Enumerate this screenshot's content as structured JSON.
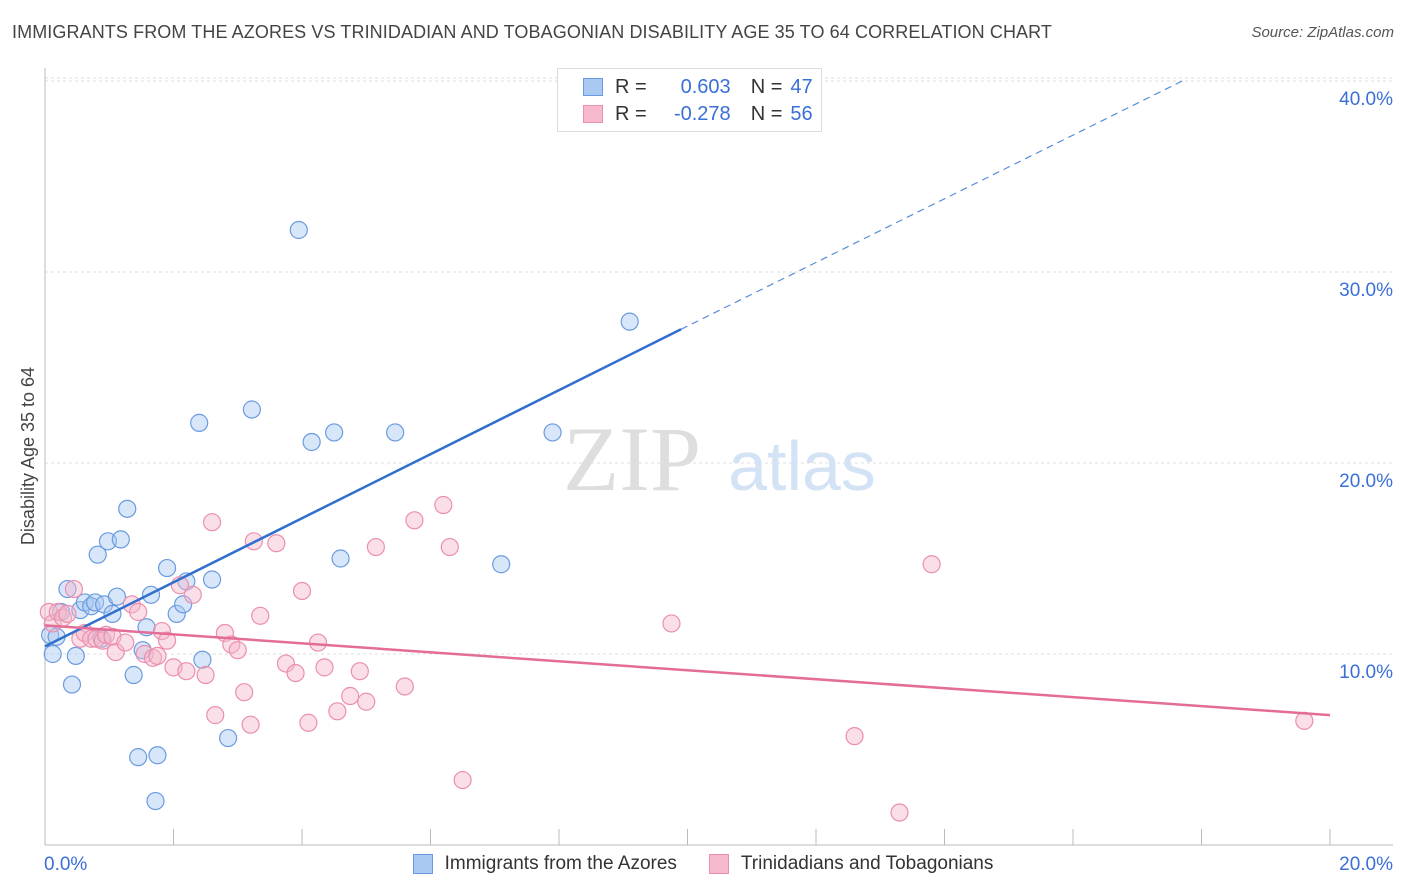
{
  "header": {
    "title": "IMMIGRANTS FROM THE AZORES VS TRINIDADIAN AND TOBAGONIAN DISABILITY AGE 35 TO 64 CORRELATION CHART",
    "source": "Source: ZipAtlas.com"
  },
  "watermark": {
    "zip": "ZIP",
    "atlas": "atlas"
  },
  "stats": [
    {
      "r_label": "R =",
      "r_value": "0.603",
      "n_label": "N =",
      "n_value": "47"
    },
    {
      "r_label": "R =",
      "r_value": "-0.278",
      "n_label": "N =",
      "n_value": "56"
    }
  ],
  "colors": {
    "blue_fill": "#a9c8f2",
    "blue_stroke": "#6a9be0",
    "blue_line": "#2f6fcd",
    "pink_fill": "#f5b8cd",
    "pink_stroke": "#eb8fae",
    "pink_line": "#e46c98",
    "axis_text": "#3a6fd8",
    "grid": "#dcdcdc"
  },
  "chart_data": {
    "type": "scatter",
    "title": "IMMIGRANTS FROM THE AZORES VS TRINIDADIAN AND TOBAGONIAN DISABILITY AGE 35 TO 64 CORRELATION CHART",
    "xlabel": "",
    "ylabel": "Disability Age 35 to 64",
    "xlim": [
      0,
      20
    ],
    "ylim": [
      0,
      41
    ],
    "x_tick_labels": [
      {
        "value": 0,
        "label": "0.0%"
      },
      {
        "value": 20,
        "label": "20.0%"
      }
    ],
    "y_tick_labels": [
      {
        "value": 10,
        "label": "10.0%"
      },
      {
        "value": 20,
        "label": "20.0%"
      },
      {
        "value": 30,
        "label": "30.0%"
      },
      {
        "value": 40,
        "label": "40.0%"
      }
    ],
    "grid": true,
    "legend_position": "bottom-center",
    "series": [
      {
        "name": "Immigrants from the Azores",
        "color": "#a9c8f2",
        "points": [
          [
            0.08,
            11.0
          ],
          [
            0.12,
            10.0
          ],
          [
            0.18,
            10.9
          ],
          [
            0.25,
            12.2
          ],
          [
            0.35,
            13.4
          ],
          [
            0.42,
            8.4
          ],
          [
            0.48,
            9.9
          ],
          [
            0.55,
            12.3
          ],
          [
            0.62,
            12.7
          ],
          [
            0.72,
            12.5
          ],
          [
            0.78,
            12.7
          ],
          [
            0.82,
            15.2
          ],
          [
            0.88,
            10.8
          ],
          [
            0.92,
            12.6
          ],
          [
            0.98,
            15.9
          ],
          [
            1.05,
            12.1
          ],
          [
            1.12,
            13.0
          ],
          [
            1.18,
            16.0
          ],
          [
            1.28,
            17.6
          ],
          [
            1.38,
            8.9
          ],
          [
            1.45,
            4.6
          ],
          [
            1.52,
            10.2
          ],
          [
            1.58,
            11.4
          ],
          [
            1.65,
            13.1
          ],
          [
            1.72,
            2.3
          ],
          [
            1.75,
            4.7
          ],
          [
            1.9,
            14.5
          ],
          [
            2.05,
            12.1
          ],
          [
            2.15,
            12.6
          ],
          [
            2.2,
            13.8
          ],
          [
            2.4,
            22.1
          ],
          [
            2.45,
            9.7
          ],
          [
            2.6,
            13.9
          ],
          [
            2.85,
            5.6
          ],
          [
            3.22,
            22.8
          ],
          [
            3.95,
            32.2
          ],
          [
            4.15,
            21.1
          ],
          [
            4.5,
            21.6
          ],
          [
            4.6,
            15.0
          ],
          [
            5.45,
            21.6
          ],
          [
            7.1,
            14.7
          ],
          [
            7.9,
            21.6
          ],
          [
            9.1,
            27.4
          ]
        ],
        "trend_solid": [
          [
            0.0,
            10.4
          ],
          [
            9.9,
            27.0
          ]
        ],
        "trend_dashed": [
          [
            9.9,
            27.0
          ],
          [
            17.7,
            40.0
          ]
        ]
      },
      {
        "name": "Trinidadians and Tobagonians",
        "color": "#f5b8cd",
        "points": [
          [
            0.06,
            12.2
          ],
          [
            0.12,
            11.6
          ],
          [
            0.2,
            12.2
          ],
          [
            0.28,
            11.9
          ],
          [
            0.35,
            12.1
          ],
          [
            0.45,
            13.4
          ],
          [
            0.55,
            10.8
          ],
          [
            0.62,
            11.1
          ],
          [
            0.72,
            10.8
          ],
          [
            0.8,
            10.8
          ],
          [
            0.9,
            10.7
          ],
          [
            0.95,
            11.0
          ],
          [
            1.05,
            10.9
          ],
          [
            1.1,
            10.1
          ],
          [
            1.25,
            10.6
          ],
          [
            1.35,
            12.6
          ],
          [
            1.45,
            12.2
          ],
          [
            1.55,
            10.0
          ],
          [
            1.68,
            9.8
          ],
          [
            1.75,
            9.9
          ],
          [
            1.82,
            11.2
          ],
          [
            1.9,
            10.7
          ],
          [
            2.0,
            9.3
          ],
          [
            2.1,
            13.6
          ],
          [
            2.2,
            9.1
          ],
          [
            2.3,
            13.1
          ],
          [
            2.5,
            8.9
          ],
          [
            2.6,
            16.9
          ],
          [
            2.65,
            6.8
          ],
          [
            2.8,
            11.1
          ],
          [
            2.9,
            10.5
          ],
          [
            3.0,
            10.2
          ],
          [
            3.1,
            8.0
          ],
          [
            3.2,
            6.3
          ],
          [
            3.25,
            15.9
          ],
          [
            3.35,
            12.0
          ],
          [
            3.6,
            15.8
          ],
          [
            3.75,
            9.5
          ],
          [
            3.9,
            9.0
          ],
          [
            4.0,
            13.3
          ],
          [
            4.1,
            6.4
          ],
          [
            4.25,
            10.6
          ],
          [
            4.35,
            9.3
          ],
          [
            4.55,
            7.0
          ],
          [
            4.75,
            7.8
          ],
          [
            4.9,
            9.1
          ],
          [
            5.0,
            7.5
          ],
          [
            5.15,
            15.6
          ],
          [
            5.6,
            8.3
          ],
          [
            5.75,
            17.0
          ],
          [
            6.2,
            17.8
          ],
          [
            6.3,
            15.6
          ],
          [
            6.5,
            3.4
          ],
          [
            9.75,
            11.6
          ],
          [
            12.6,
            5.7
          ],
          [
            13.3,
            1.7
          ],
          [
            13.8,
            14.7
          ],
          [
            19.6,
            6.5
          ]
        ],
        "trend_solid": [
          [
            0.0,
            11.5
          ],
          [
            20.0,
            6.8
          ]
        ]
      }
    ]
  }
}
